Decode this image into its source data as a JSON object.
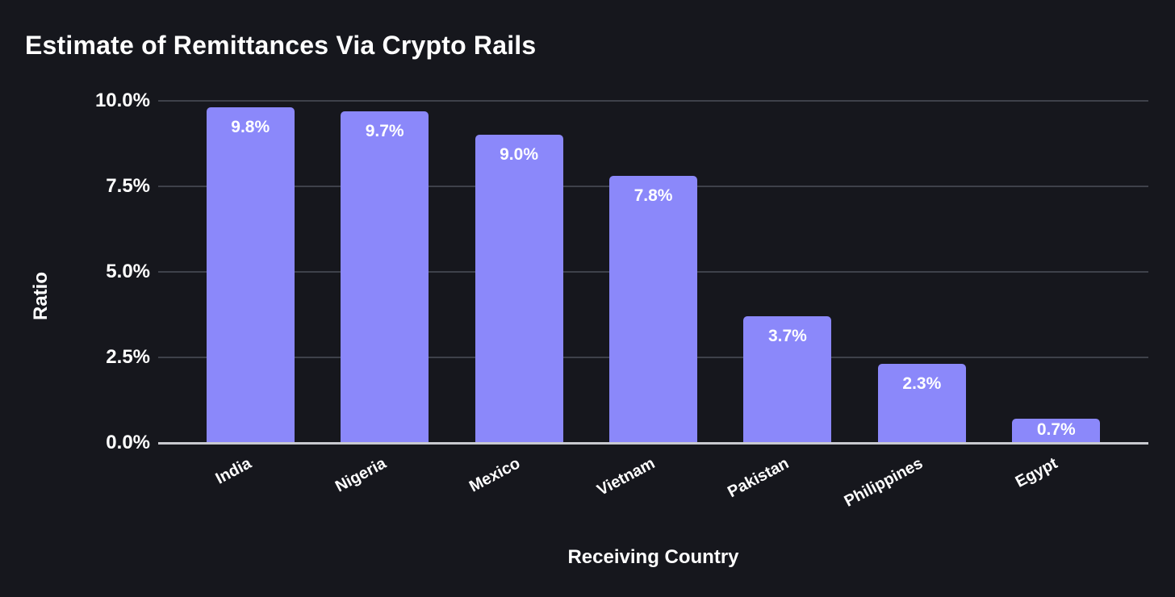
{
  "chart_data": {
    "type": "bar",
    "title": "Estimate of Remittances Via Crypto Rails",
    "xlabel": "Receiving Country",
    "ylabel": "Ratio",
    "categories": [
      "India",
      "Nigeria",
      "Mexico",
      "Vietnam",
      "Pakistan",
      "Philippines",
      "Egypt"
    ],
    "values": [
      9.8,
      9.7,
      9.0,
      7.8,
      3.7,
      2.3,
      0.7
    ],
    "bar_labels": [
      "9.8%",
      "9.7%",
      "9.0%",
      "7.8%",
      "3.7%",
      "2.3%",
      "0.7%"
    ],
    "ylim": [
      0,
      10
    ],
    "yticks": [
      {
        "label": "10.0%",
        "value": 10
      },
      {
        "label": "7.5%",
        "value": 7.5
      },
      {
        "label": "5.0%",
        "value": 5
      },
      {
        "label": "2.5%",
        "value": 2.5
      },
      {
        "label": "0.0%",
        "value": 0
      }
    ],
    "grid": true,
    "legend": "none"
  },
  "colors": {
    "background": "#16171d",
    "bar": "#8b88fa",
    "gridline": "#3e414a",
    "axis_line": "#c9cad0",
    "text": "#ffffff"
  }
}
